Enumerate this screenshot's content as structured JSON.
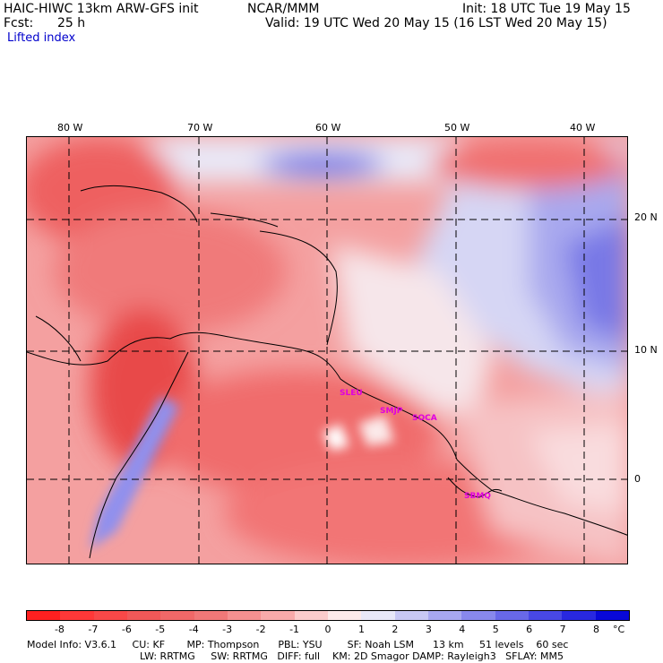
{
  "header": {
    "model": "HAIC-HIWC 13km ARW-GFS init",
    "org": "NCAR/MMM",
    "fcst_label": "Fcst:",
    "fcst_value": "25 h",
    "init": "Init: 18 UTC Tue 19 May 15",
    "valid": "Valid: 19 UTC Wed 20 May 15 (16 LST Wed 20 May 15)",
    "field": "Lifted index"
  },
  "map": {
    "lon_labels": [
      "80 W",
      "70 W",
      "60 W",
      "50 W",
      "40 W"
    ],
    "lat_labels": [
      "20 N",
      "10 N",
      "0"
    ],
    "stations": [
      {
        "id": "st1",
        "label": "SLEU"
      },
      {
        "id": "st2",
        "label": "SMJP"
      },
      {
        "id": "st3",
        "label": "SOCA"
      },
      {
        "id": "st4",
        "label": "SBMQ"
      }
    ]
  },
  "colorbar": {
    "ticks": [
      "-8",
      "-7",
      "-6",
      "-5",
      "-4",
      "-3",
      "-2",
      "-1",
      "0",
      "1",
      "2",
      "3",
      "4",
      "5",
      "6",
      "7",
      "8"
    ],
    "unit": "°C",
    "colors": [
      "#ff2020",
      "#ff3838",
      "#f84848",
      "#f05858",
      "#f06868",
      "#f07878",
      "#f59090",
      "#f8aaaa",
      "#fbcccc",
      "#fceaea",
      "#e8e8f8",
      "#c8c8f4",
      "#a8a8f0",
      "#8888ec",
      "#6868e8",
      "#4848e4",
      "#2828e0",
      "#0808d8"
    ]
  },
  "footer": {
    "line1": "Model Info: V3.6.1     CU: KF       MP: Thompson      PBL: YSU        SF: Noah LSM      13 km     51 levels    60 sec",
    "line2": "LW: RRTMG     SW: RRTMG   DIFF: full    KM: 2D Smagor DAMP: Rayleigh3   SFLAY: MM5"
  }
}
